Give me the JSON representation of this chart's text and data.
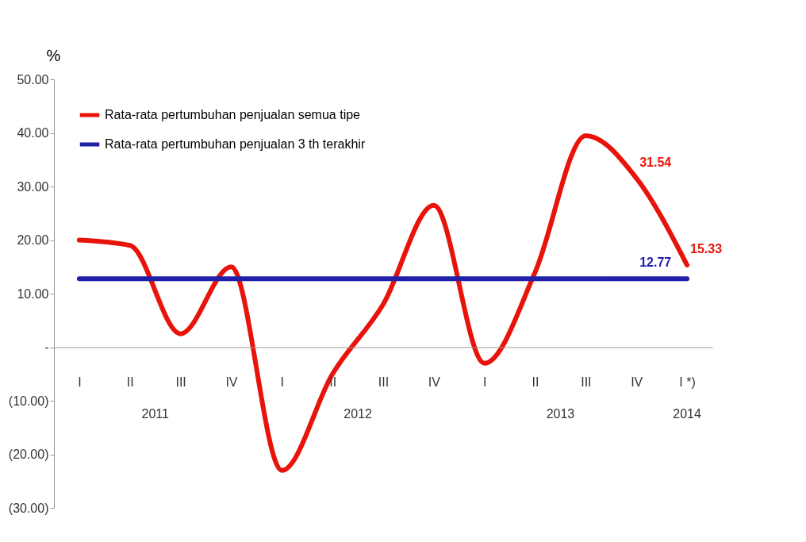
{
  "chart_data": {
    "type": "line",
    "ylabel": "%",
    "categories": [
      "I",
      "II",
      "III",
      "IV",
      "I",
      "II",
      "III",
      "IV",
      "I",
      "II",
      "III",
      "IV",
      "I *)"
    ],
    "series": [
      {
        "name": "Rata-rata pertumbuhan penjualan semua tipe",
        "color": "#e8140c",
        "values": [
          20,
          19,
          2.5,
          15,
          -23,
          -5,
          8,
          26.5,
          -3,
          14,
          39.5,
          31.54,
          15.33
        ],
        "value_labels": [
          null,
          null,
          null,
          null,
          null,
          null,
          null,
          null,
          null,
          null,
          null,
          "31.54",
          "15.33"
        ]
      },
      {
        "name": "Rata-rata pertumbuhan penjualan 3 th terakhir",
        "color": "#1f1fa8",
        "values": [
          12.77,
          12.77,
          12.77,
          12.77,
          12.77,
          12.77,
          12.77,
          12.77,
          12.77,
          12.77,
          12.77,
          12.77,
          12.77
        ],
        "value_labels": [
          null,
          null,
          null,
          null,
          null,
          null,
          null,
          null,
          null,
          null,
          null,
          "12.77",
          null
        ]
      }
    ],
    "annotations": [
      "2011",
      "2012",
      "2013",
      "2014"
    ],
    "ylim": [
      -30,
      50
    ],
    "yticks": [
      {
        "value": -30,
        "label": "(30.00)"
      },
      {
        "value": -20,
        "label": "(20.00)"
      },
      {
        "value": -10,
        "label": "(10.00)"
      },
      {
        "value": 0,
        "label": "-"
      },
      {
        "value": 10,
        "label": "10.00"
      },
      {
        "value": 20,
        "label": "20.00"
      },
      {
        "value": 30,
        "label": "30.00"
      },
      {
        "value": 40,
        "label": "40.00"
      },
      {
        "value": 50,
        "label": "50.00"
      }
    ],
    "grid": false,
    "legend": "top left",
    "marker": "none",
    "line_style": "solid"
  }
}
